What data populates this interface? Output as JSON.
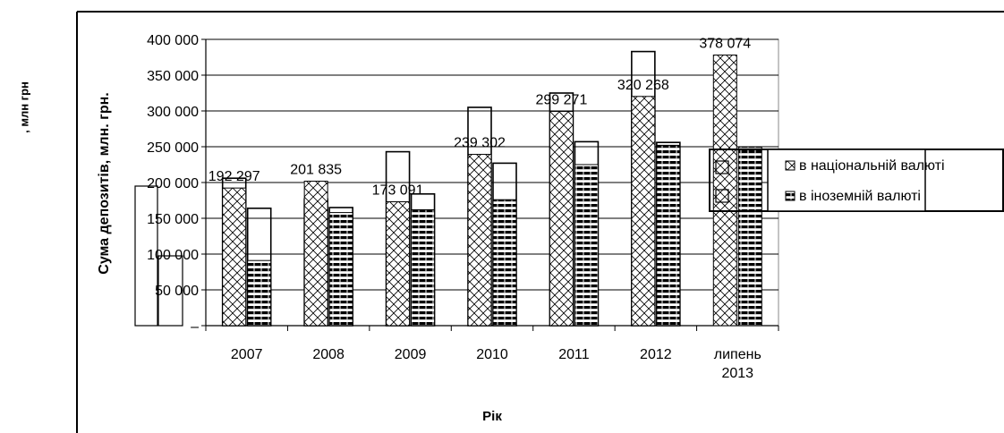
{
  "outer_label": ", млн грн",
  "chart_data": {
    "type": "bar",
    "categories": [
      "2007",
      "2008",
      "2009",
      "2010",
      "2011",
      "2012",
      "липень 2013"
    ],
    "series": [
      {
        "name": "в національній валюті",
        "values": [
          192297,
          201835,
          173091,
          239302,
          299271,
          320268,
          378074
        ],
        "pattern": "diagonal-cross"
      },
      {
        "name": "в іноземній валюті",
        "values": [
          91000,
          158000,
          162000,
          176000,
          225000,
          252000,
          250000
        ],
        "pattern": "horizontal-bricks"
      }
    ],
    "outline_bars": {
      "first": [
        206000,
        177000,
        243000,
        305000,
        325000,
        383000
      ],
      "second": [
        164000,
        165000,
        184000,
        227000,
        257000,
        256000
      ]
    },
    "data_labels": [
      "192 297",
      "201 835",
      "173 091",
      "239 302",
      "299 271",
      "320 268",
      "378 074"
    ],
    "ylabel": "Сума депозитів, млн. грн.",
    "xlabel": "Рік",
    "ylim": [
      0,
      400000
    ],
    "yticks": [
      0,
      50000,
      100000,
      150000,
      200000,
      250000,
      300000,
      350000,
      400000
    ],
    "ytick_labels": [
      "–",
      "50 000",
      "100 000",
      "150 000",
      "200 000",
      "250 000",
      "300 000",
      "350 000",
      "400 000"
    ],
    "legend_position": "right",
    "colors": {
      "fill": "#ffffff",
      "stroke": "#000000",
      "pattern": "#000000"
    }
  }
}
